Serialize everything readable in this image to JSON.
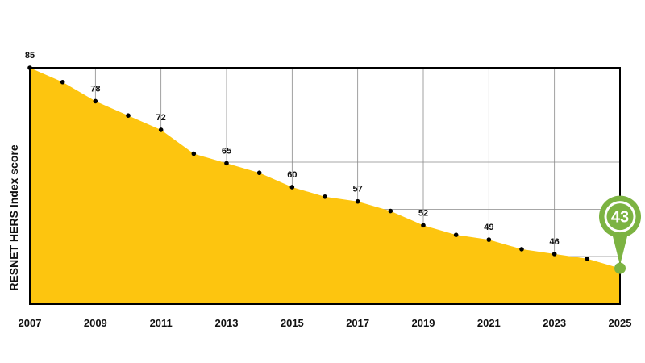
{
  "chart_data": {
    "type": "area",
    "title": "",
    "xlabel": "",
    "ylabel": "RESNET HERS Index score",
    "x": [
      2007,
      2008,
      2009,
      2010,
      2011,
      2012,
      2013,
      2014,
      2015,
      2016,
      2017,
      2018,
      2019,
      2020,
      2021,
      2022,
      2023,
      2024,
      2025
    ],
    "values": [
      85,
      82,
      78,
      75,
      72,
      67,
      65,
      63,
      60,
      58,
      57,
      55,
      52,
      50,
      49,
      47,
      46,
      45,
      43
    ],
    "labeled_years": [
      2007,
      2009,
      2011,
      2013,
      2015,
      2017,
      2019,
      2021,
      2023
    ],
    "highlight": {
      "year": 2025,
      "value": 43,
      "label": "43",
      "color": "#7cb342"
    },
    "x_ticks": [
      "2007",
      "2009",
      "2011",
      "2013",
      "2015",
      "2017",
      "2019",
      "2021",
      "2023",
      "2025"
    ],
    "xlim": [
      2007,
      2025
    ],
    "ylim": [
      43,
      85
    ],
    "grid": true,
    "colors": {
      "fill": "#fdc50f",
      "grid": "#8a8a8a",
      "marker": "#000000"
    }
  }
}
